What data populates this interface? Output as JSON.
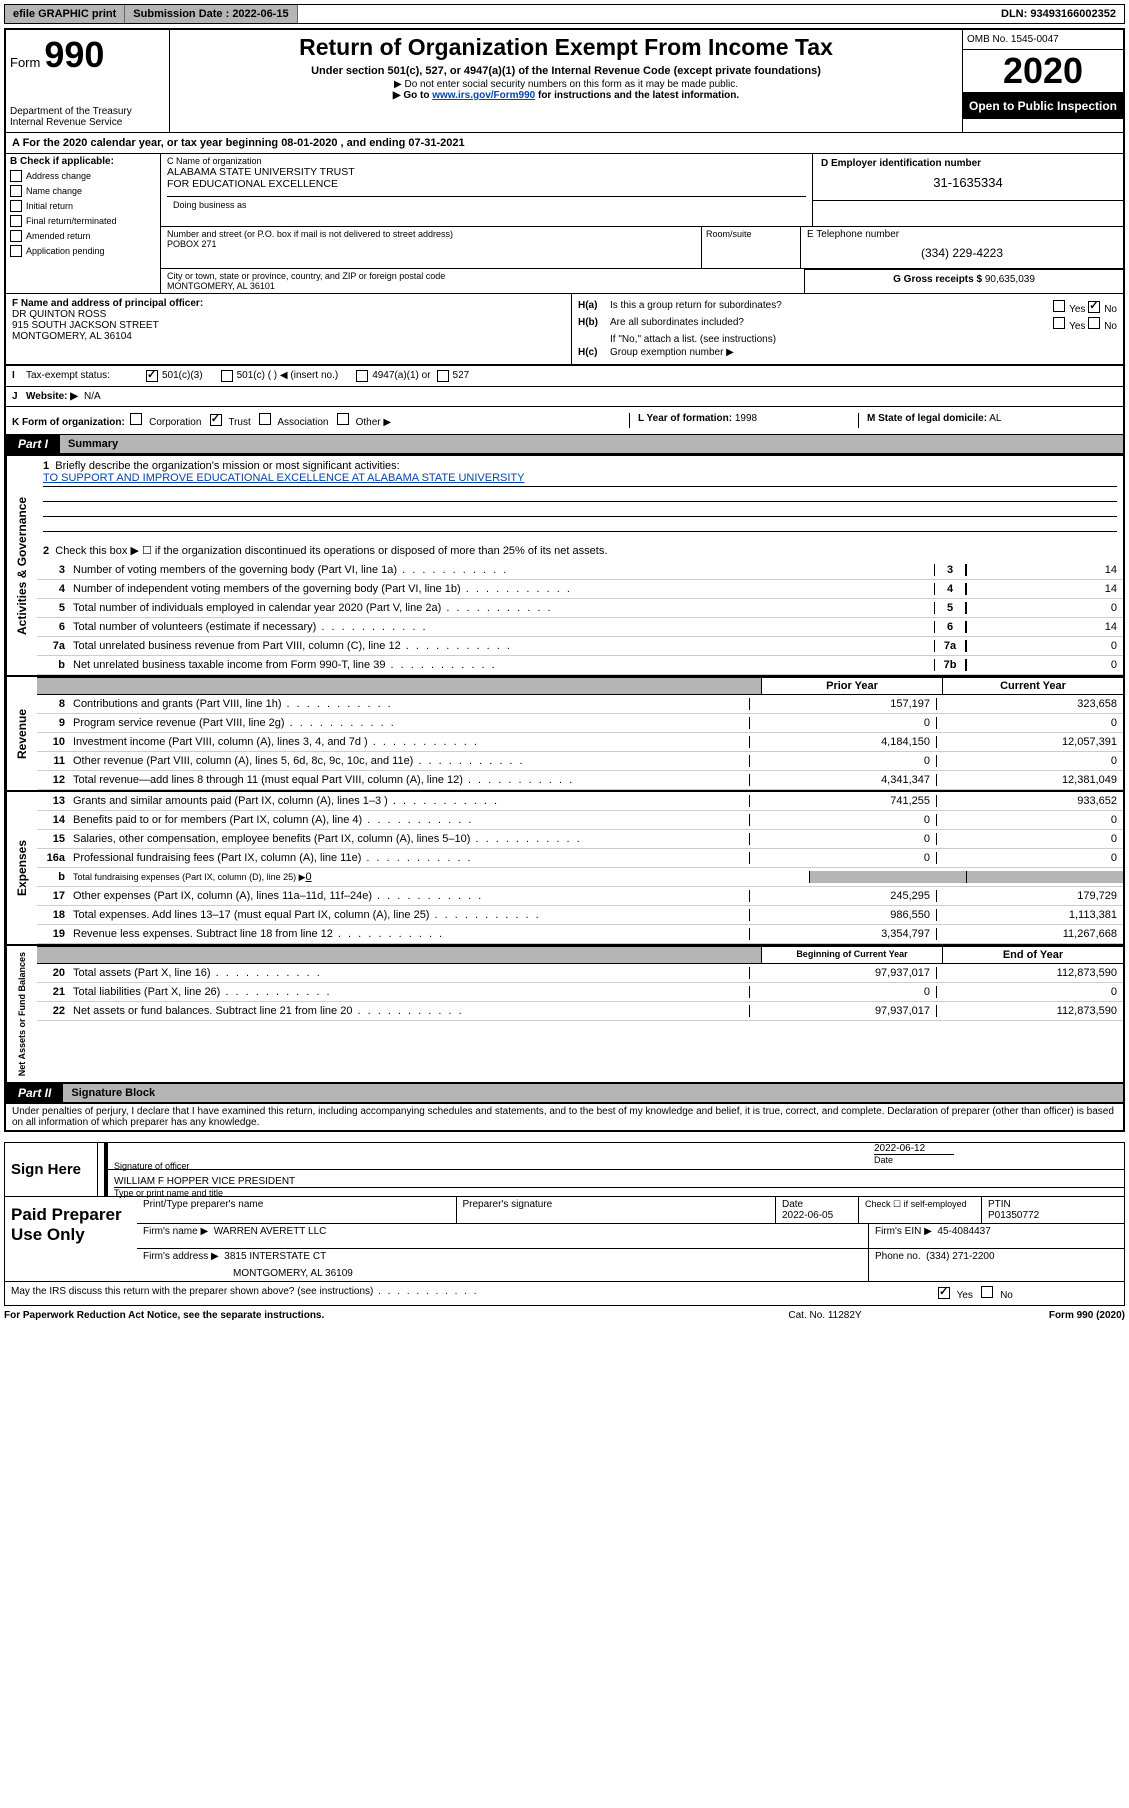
{
  "topbar": {
    "efile": "efile GRAPHIC print",
    "sub_lbl": "Submission Date : 2022-06-15",
    "dln": "DLN: 93493166002352"
  },
  "header": {
    "form_word": "Form",
    "form_num": "990",
    "dept": "Department of the Treasury",
    "irs": "Internal Revenue Service",
    "title": "Return of Organization Exempt From Income Tax",
    "sub": "Under section 501(c), 527, or 4947(a)(1) of the Internal Revenue Code (except private foundations)",
    "note1": "▶ Do not enter social security numbers on this form as it may be made public.",
    "note2_pre": "▶ Go to ",
    "note2_link": "www.irs.gov/Form990",
    "note2_post": " for instructions and the latest information.",
    "omb": "OMB No. 1545-0047",
    "year": "2020",
    "open": "Open to Public Inspection"
  },
  "yearline": "A For the 2020 calendar year, or tax year beginning 08-01-2020   , and ending 07-31-2021",
  "B": {
    "label": "B Check if applicable:",
    "addr_change": "Address change",
    "name_change": "Name change",
    "initial": "Initial return",
    "final": "Final return/terminated",
    "amended": "Amended return",
    "app_pending": "Application pending"
  },
  "C": {
    "name_lbl": "C Name of organization",
    "name": "ALABAMA STATE UNIVERSITY TRUST\nFOR EDUCATIONAL EXCELLENCE",
    "dba_lbl": "Doing business as",
    "addr_lbl": "Number and street (or P.O. box if mail is not delivered to street address)",
    "addr": "POBOX 271",
    "room_lbl": "Room/suite",
    "city_lbl": "City or town, state or province, country, and ZIP or foreign postal code",
    "city": "MONTGOMERY, AL  36101"
  },
  "D": {
    "lbl": "D Employer identification number",
    "ein": "31-1635334"
  },
  "E": {
    "lbl": "E Telephone number",
    "phone": "(334) 229-4223"
  },
  "G": {
    "lbl": "G Gross receipts $",
    "val": "90,635,039"
  },
  "F": {
    "lbl": "F Name and address of principal officer:",
    "name": "DR QUINTON ROSS",
    "street": "915 SOUTH JACKSON STREET",
    "csz": "MONTGOMERY, AL  36104"
  },
  "H": {
    "a_lbl": "H(a)",
    "a_txt": "Is this a group return for subordinates?",
    "b_lbl": "H(b)",
    "b_txt": "Are all subordinates included?",
    "b_note": "If \"No,\" attach a list. (see instructions)",
    "c_lbl": "H(c)",
    "c_txt": "Group exemption number ▶",
    "yes": "Yes",
    "no": "No"
  },
  "I": {
    "lbl": "I",
    "txt": "Tax-exempt status:",
    "c3": "501(c)(3)",
    "c": "501(c) (  ) ◀ (insert no.)",
    "a1": "4947(a)(1) or",
    "s527": "527"
  },
  "J": {
    "lbl": "J",
    "txt": "Website: ▶",
    "val": "N/A"
  },
  "K": {
    "lbl": "K Form of organization:",
    "corp": "Corporation",
    "trust": "Trust",
    "assoc": "Association",
    "other": "Other ▶"
  },
  "L": {
    "lbl": "L Year of formation:",
    "val": "1998"
  },
  "M": {
    "lbl": "M State of legal domicile:",
    "val": "AL"
  },
  "part1": {
    "tab": "Part I",
    "title": "Summary"
  },
  "summary": {
    "q1_lbl": "1",
    "q1_txt": "Briefly describe the organization's mission or most significant activities:",
    "q1_val": "TO SUPPORT AND IMPROVE EDUCATIONAL EXCELLENCE AT ALABAMA STATE UNIVERSITY",
    "q2_lbl": "2",
    "q2_txt": "Check this box ▶ ☐  if the organization discontinued its operations or disposed of more than 25% of its net assets.",
    "lines": [
      {
        "n": "3",
        "t": "Number of voting members of the governing body (Part VI, line 1a)",
        "box": "3",
        "v": "14"
      },
      {
        "n": "4",
        "t": "Number of independent voting members of the governing body (Part VI, line 1b)",
        "box": "4",
        "v": "14"
      },
      {
        "n": "5",
        "t": "Total number of individuals employed in calendar year 2020 (Part V, line 2a)",
        "box": "5",
        "v": "0"
      },
      {
        "n": "6",
        "t": "Total number of volunteers (estimate if necessary)",
        "box": "6",
        "v": "14"
      },
      {
        "n": "7a",
        "t": "Total unrelated business revenue from Part VIII, column (C), line 12",
        "box": "7a",
        "v": "0"
      },
      {
        "n": "b",
        "t": "Net unrelated business taxable income from Form 990-T, line 39",
        "box": "7b",
        "v": "0"
      }
    ]
  },
  "twocol": {
    "prior": "Prior Year",
    "current": "Current Year",
    "begin": "Beginning of Current Year",
    "end": "End of Year"
  },
  "revenue": [
    {
      "n": "8",
      "t": "Contributions and grants (Part VIII, line 1h)",
      "p": "157,197",
      "c": "323,658"
    },
    {
      "n": "9",
      "t": "Program service revenue (Part VIII, line 2g)",
      "p": "0",
      "c": "0"
    },
    {
      "n": "10",
      "t": "Investment income (Part VIII, column (A), lines 3, 4, and 7d )",
      "p": "4,184,150",
      "c": "12,057,391"
    },
    {
      "n": "11",
      "t": "Other revenue (Part VIII, column (A), lines 5, 6d, 8c, 9c, 10c, and 11e)",
      "p": "0",
      "c": "0"
    },
    {
      "n": "12",
      "t": "Total revenue—add lines 8 through 11 (must equal Part VIII, column (A), line 12)",
      "p": "4,341,347",
      "c": "12,381,049"
    }
  ],
  "expenses": [
    {
      "n": "13",
      "t": "Grants and similar amounts paid (Part IX, column (A), lines 1–3 )",
      "p": "741,255",
      "c": "933,652"
    },
    {
      "n": "14",
      "t": "Benefits paid to or for members (Part IX, column (A), line 4)",
      "p": "0",
      "c": "0"
    },
    {
      "n": "15",
      "t": "Salaries, other compensation, employee benefits (Part IX, column (A), lines 5–10)",
      "p": "0",
      "c": "0"
    },
    {
      "n": "16a",
      "t": "Professional fundraising fees (Part IX, column (A), line 11e)",
      "p": "0",
      "c": "0"
    }
  ],
  "exp_b": {
    "n": "b",
    "t": "Total fundraising expenses (Part IX, column (D), line 25) ▶",
    "v": "0"
  },
  "expenses2": [
    {
      "n": "17",
      "t": "Other expenses (Part IX, column (A), lines 11a–11d, 11f–24e)",
      "p": "245,295",
      "c": "179,729"
    },
    {
      "n": "18",
      "t": "Total expenses. Add lines 13–17 (must equal Part IX, column (A), line 25)",
      "p": "986,550",
      "c": "1,113,381"
    },
    {
      "n": "19",
      "t": "Revenue less expenses. Subtract line 18 from line 12",
      "p": "3,354,797",
      "c": "11,267,668"
    }
  ],
  "netassets": [
    {
      "n": "20",
      "t": "Total assets (Part X, line 16)",
      "p": "97,937,017",
      "c": "112,873,590"
    },
    {
      "n": "21",
      "t": "Total liabilities (Part X, line 26)",
      "p": "0",
      "c": "0"
    },
    {
      "n": "22",
      "t": "Net assets or fund balances. Subtract line 21 from line 20",
      "p": "97,937,017",
      "c": "112,873,590"
    }
  ],
  "sidelabels": {
    "gov": "Activities & Governance",
    "rev": "Revenue",
    "exp": "Expenses",
    "net": "Net Assets or Fund Balances"
  },
  "part2": {
    "tab": "Part II",
    "title": "Signature Block"
  },
  "perjury": "Under penalties of perjury, I declare that I have examined this return, including accompanying schedules and statements, and to the best of my knowledge and belief, it is true, correct, and complete. Declaration of preparer (other than officer) is based on all information of which preparer has any knowledge.",
  "sign": {
    "here": "Sign Here",
    "sig_officer": "Signature of officer",
    "date": "2022-06-12",
    "date_lbl": "Date",
    "name_title": "WILLIAM F HOPPER  VICE PRESIDENT",
    "type_lbl": "Type or print name and title"
  },
  "preparer": {
    "title": "Paid Preparer Use Only",
    "print_lbl": "Print/Type preparer's name",
    "sig_lbl": "Preparer's signature",
    "date_lbl": "Date",
    "date": "2022-06-05",
    "check_lbl": "Check ☐ if self-employed",
    "ptin_lbl": "PTIN",
    "ptin": "P01350772",
    "firm_name_lbl": "Firm's name   ▶",
    "firm_name": "WARREN AVERETT LLC",
    "firm_ein_lbl": "Firm's EIN ▶",
    "firm_ein": "45-4084437",
    "firm_addr_lbl": "Firm's address ▶",
    "firm_addr1": "3815 INTERSTATE CT",
    "firm_addr2": "MONTGOMERY, AL  36109",
    "phone_lbl": "Phone no.",
    "phone": "(334) 271-2200"
  },
  "discuss": {
    "txt": "May the IRS discuss this return with the preparer shown above? (see instructions)",
    "yes": "Yes",
    "no": "No"
  },
  "footer": {
    "left": "For Paperwork Reduction Act Notice, see the separate instructions.",
    "mid": "Cat. No. 11282Y",
    "right": "Form 990 (2020)"
  }
}
